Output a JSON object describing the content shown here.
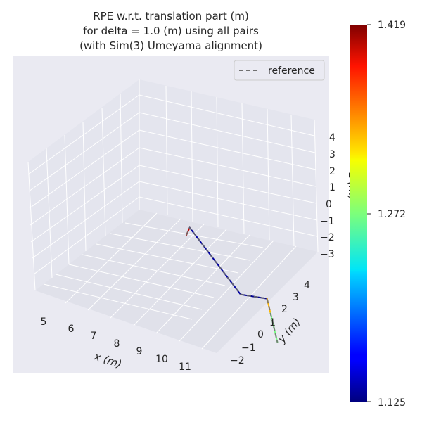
{
  "chart_data": {
    "type": "line",
    "projection": "3d",
    "title": [
      "RPE w.r.t. translation part (m)",
      "for delta = 1.0 (m) using all pairs",
      "(with Sim(3) Umeyama alignment)"
    ],
    "xlabel": "x (m)",
    "ylabel": "y (m)",
    "zlabel": "z (m)",
    "x_ticks": [
      "5",
      "6",
      "7",
      "8",
      "9",
      "10",
      "11"
    ],
    "y_ticks": [
      "−2",
      "−1",
      "0",
      "1",
      "2",
      "3",
      "4"
    ],
    "z_ticks": [
      "4",
      "3",
      "2",
      "1",
      "0",
      "−1",
      "−2",
      "−3"
    ],
    "grid": true,
    "legend": {
      "position": "upper-right",
      "entries": [
        {
          "label": "reference",
          "style": "dashed",
          "color": "#707070"
        }
      ]
    },
    "colorbar": {
      "colormap": "jet",
      "min": 1.125,
      "max": 1.419,
      "tick_labels": [
        "1.419",
        "1.272",
        "1.125"
      ]
    },
    "series": [
      {
        "name": "reference",
        "style": "dashed",
        "color": "#707070",
        "points": [
          [
            4.6,
            4.0,
            -1.0
          ],
          [
            5.0,
            3.5,
            0.0
          ],
          [
            9.0,
            0.0,
            0.4
          ],
          [
            9.8,
            0.7,
            0.0
          ],
          [
            9.95,
            1.3,
            -3.0
          ]
        ]
      },
      {
        "name": "trajectory",
        "colored_by": "RPE",
        "segments": [
          {
            "from": [
              4.6,
              4.0,
              -1.0
            ],
            "to": [
              5.0,
              3.5,
              0.0
            ],
            "value": 1.4
          },
          {
            "from": [
              5.0,
              3.5,
              0.0
            ],
            "to": [
              9.0,
              0.0,
              0.4
            ],
            "value": 1.135
          },
          {
            "from": [
              9.0,
              0.0,
              0.4
            ],
            "to": [
              9.8,
              0.7,
              0.0
            ],
            "value": 1.13
          },
          {
            "from": [
              9.8,
              0.7,
              0.0
            ],
            "to": [
              9.85,
              0.9,
              -1.0
            ],
            "value": 1.33
          },
          {
            "from": [
              9.85,
              0.9,
              -1.0
            ],
            "to": [
              9.95,
              1.3,
              -3.0
            ],
            "value": 1.27
          }
        ]
      }
    ],
    "colors": {
      "pane": "#e8e9f1",
      "grid": "#ffffff",
      "text": "#262626"
    }
  }
}
